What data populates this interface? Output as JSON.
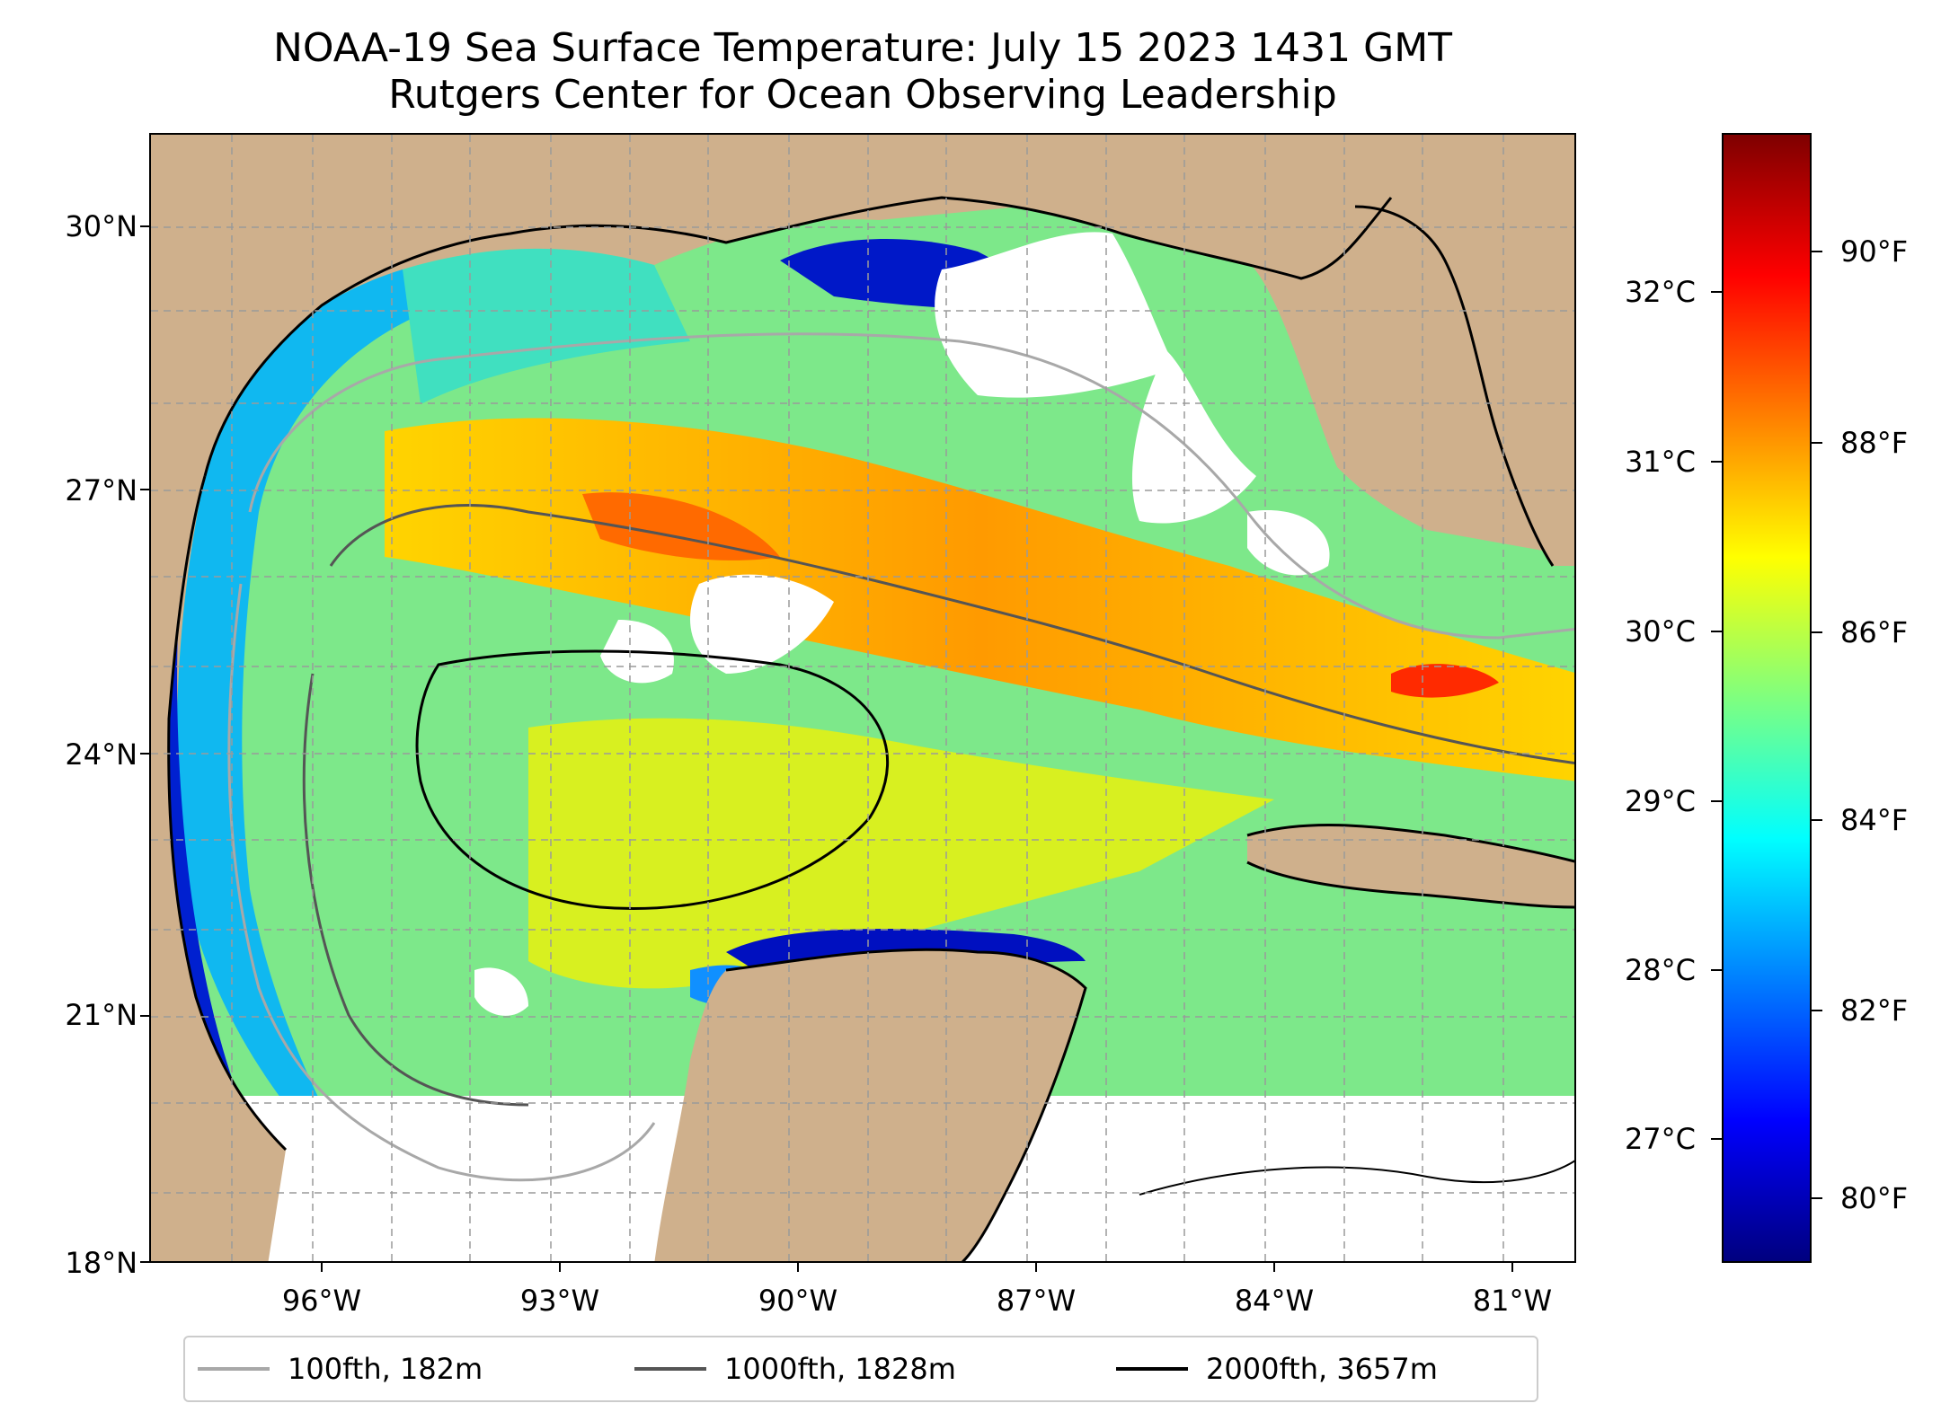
{
  "title": {
    "line1": "NOAA-19 Sea Surface Temperature: July 15 2023 1431 GMT",
    "line2": "Rutgers Center for Ocean Observing Leadership"
  },
  "map": {
    "lat_ticks": [
      "30°N",
      "27°N",
      "24°N",
      "21°N",
      "18°N"
    ],
    "lon_ticks": [
      "96°W",
      "93°W",
      "90°W",
      "87°W",
      "84°W",
      "81°W"
    ],
    "colors": {
      "land": "#cfb08c",
      "no_data": "#ffffff",
      "coast": "#000000",
      "grid": "#9a9a9a"
    }
  },
  "colorbar": {
    "colormap": "jet",
    "celsius_ticks": [
      "32°C",
      "31°C",
      "30°C",
      "29°C",
      "28°C",
      "27°C"
    ],
    "fahrenheit_ticks": [
      "90°F",
      "88°F",
      "86°F",
      "84°F",
      "82°F",
      "80°F"
    ],
    "colors": [
      "#00007f",
      "#0000ff",
      "#007fff",
      "#00ffff",
      "#7fff7f",
      "#ffff00",
      "#ff7f00",
      "#ff0000",
      "#7f0000"
    ]
  },
  "legend": {
    "items": [
      {
        "label": "100fth, 182m",
        "color": "#a8a8a8"
      },
      {
        "label": "1000fth, 1828m",
        "color": "#555555"
      },
      {
        "label": "2000fth, 3657m",
        "color": "#000000"
      }
    ]
  }
}
